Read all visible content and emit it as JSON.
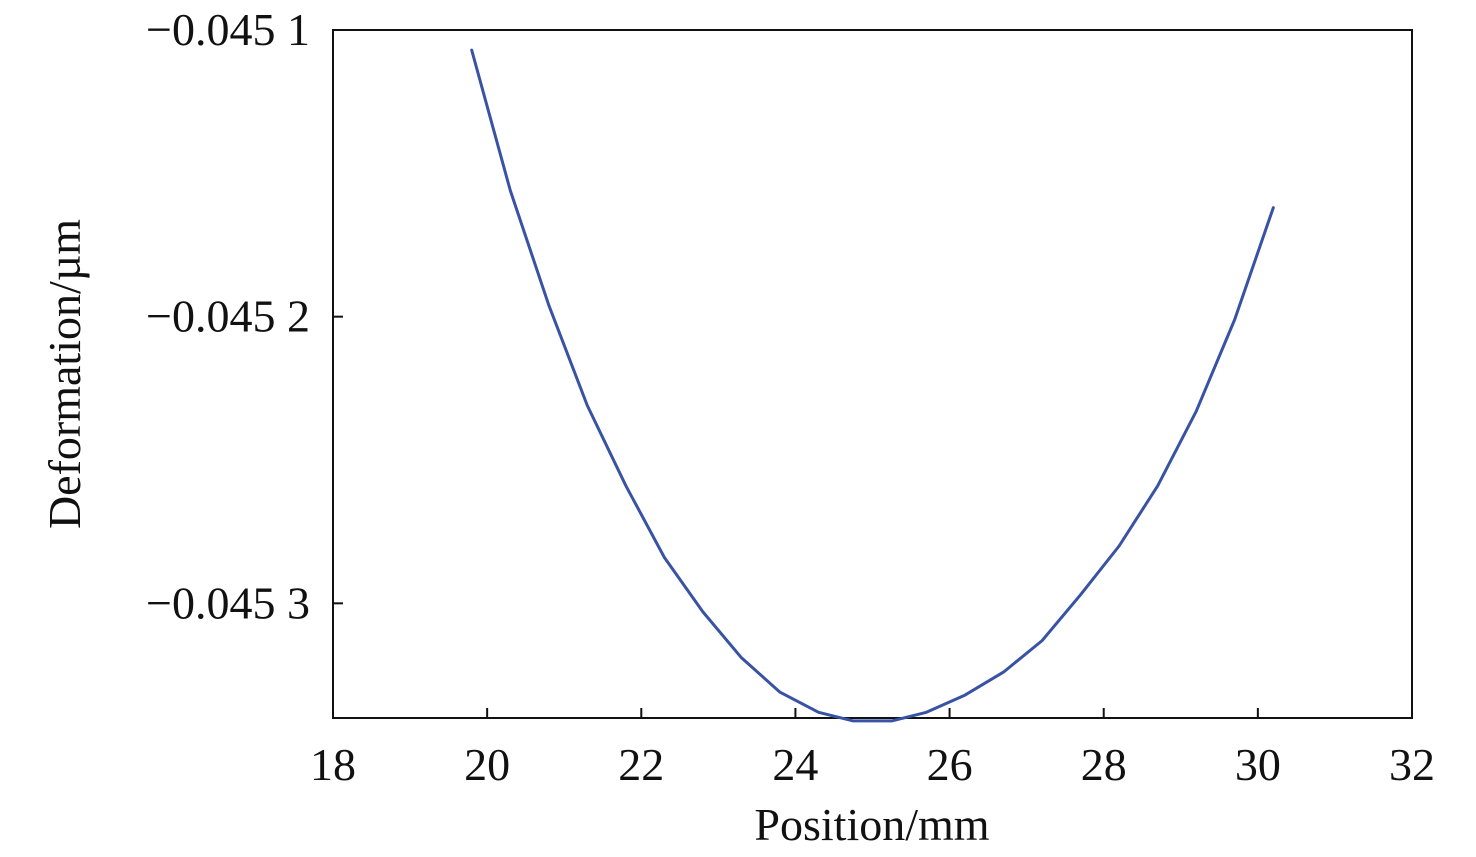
{
  "chart_data": {
    "type": "line",
    "title": "",
    "xlabel": "Position/mm",
    "ylabel": "Deformation/µm",
    "xlim": [
      18,
      32
    ],
    "ylim": [
      -0.04534,
      -0.0451
    ],
    "x_ticks": [
      18,
      20,
      22,
      24,
      26,
      28,
      30,
      32
    ],
    "x_tick_labels": [
      "18",
      "20",
      "22",
      "24",
      "26",
      "28",
      "30",
      "32"
    ],
    "y_ticks": [
      -0.0451,
      -0.0452,
      -0.0453
    ],
    "y_tick_labels": [
      "−0.045 1",
      "−0.045 2",
      "−0.045 3"
    ],
    "grid": false,
    "legend": "none",
    "line_color": "#3953a4",
    "series": [
      {
        "x": [
          19.8,
          20.3,
          20.8,
          21.3,
          21.8,
          22.3,
          22.8,
          23.3,
          23.8,
          24.3,
          24.75,
          25.25,
          25.7,
          26.2,
          26.7,
          27.2,
          27.7,
          28.2,
          28.7,
          29.2,
          29.7,
          30.2
        ],
        "values": [
          -0.045107,
          -0.045156,
          -0.045196,
          -0.045231,
          -0.045259,
          -0.045284,
          -0.045303,
          -0.045319,
          -0.045331,
          -0.045338,
          -0.045341,
          -0.045341,
          -0.045338,
          -0.045332,
          -0.045324,
          -0.045313,
          -0.045297,
          -0.04528,
          -0.045259,
          -0.045233,
          -0.045201,
          -0.045162
        ]
      }
    ]
  }
}
